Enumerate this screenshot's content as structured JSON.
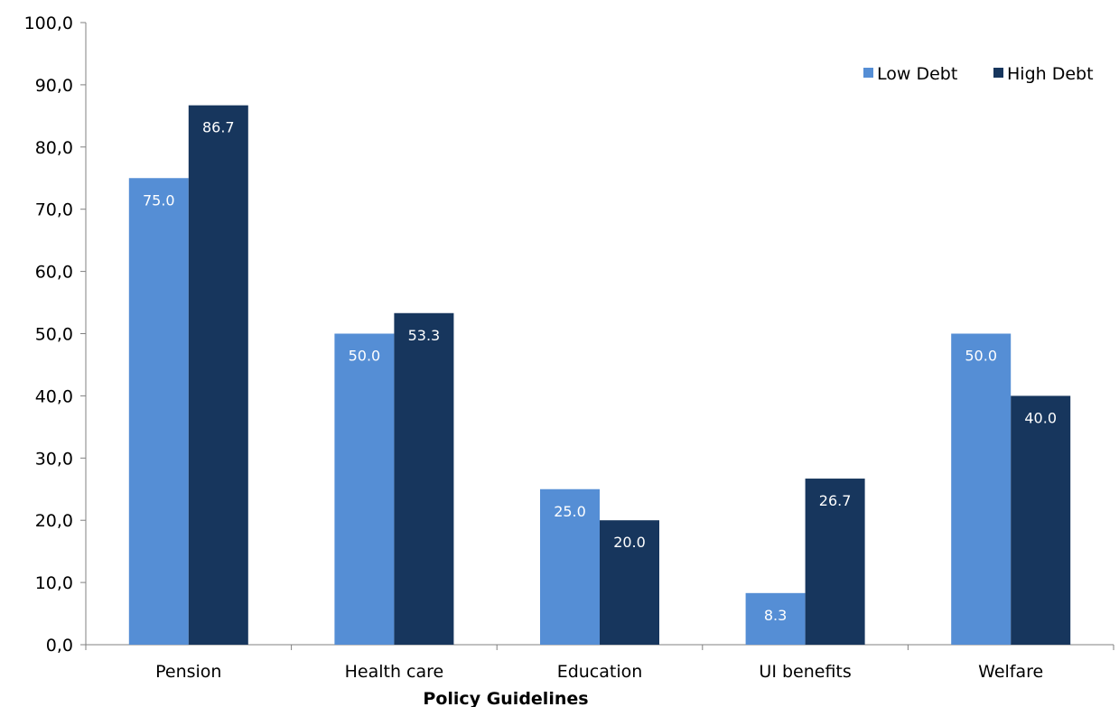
{
  "chart_data": {
    "type": "bar",
    "title": "",
    "xlabel": "Policy Guidelines",
    "ylabel": "",
    "categories": [
      "Pension",
      "Health care",
      "Education",
      "UI benefits",
      "Welfare"
    ],
    "series": [
      {
        "name": "Low Debt",
        "color": "#558ED5",
        "values": [
          75.0,
          50.0,
          25.0,
          8.3,
          50.0
        ],
        "labels": [
          "75.0",
          "50.0",
          "25.0",
          "8.3",
          "50.0"
        ]
      },
      {
        "name": "High Debt",
        "color": "#17365D",
        "values": [
          86.7,
          53.3,
          20.0,
          26.7,
          40.0
        ],
        "labels": [
          "86.7",
          "53.3",
          "20.0",
          "26.7",
          "40.0"
        ]
      }
    ],
    "ylim": [
      0,
      100
    ],
    "yticks": [
      0,
      10,
      20,
      30,
      40,
      50,
      60,
      70,
      80,
      90,
      100
    ],
    "ytick_labels": [
      "0,0",
      "10,0",
      "20,0",
      "30,0",
      "40,0",
      "50,0",
      "60,0",
      "70,0",
      "80,0",
      "90,0",
      "100,0"
    ],
    "grid": false,
    "legend_position": "top-right",
    "data_labels": "inside-end"
  }
}
